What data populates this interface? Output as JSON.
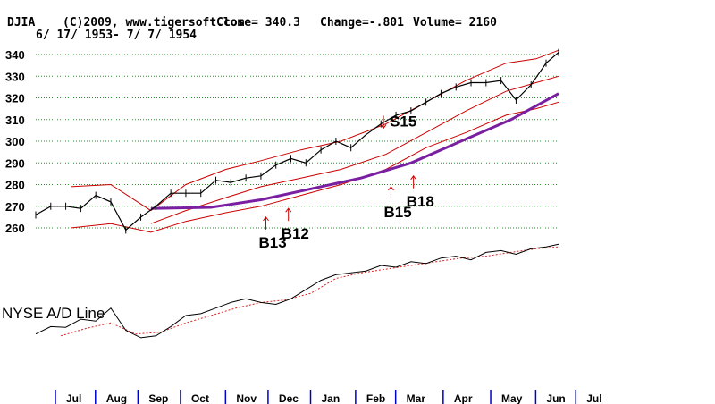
{
  "header": {
    "symbol": "DJIA",
    "copyright": "(C)2009, www.tigersoft.com",
    "close": "Close=  340.3",
    "change": "Change=-.801",
    "volume": "Volume= 2160",
    "date_range": "6/ 17/ 1953- 7/ 7/ 1954"
  },
  "colors": {
    "price": "#000000",
    "band": "#cc0000",
    "moving_average": "#7a1fa2",
    "grid": "#2e8b2e",
    "signal_arrow": "#cc0000",
    "ad_ma": "#e02020"
  },
  "chart_data": {
    "type": "line",
    "title": "DJIA",
    "ylim": [
      255,
      345
    ],
    "yticks": [
      "340",
      "330",
      "320",
      "310",
      "300",
      "290",
      "280",
      "270",
      "260"
    ],
    "months": [
      "Jul",
      "Aug",
      "Sep",
      "Oct",
      "Nov",
      "Dec",
      "Jan",
      "Feb",
      "Mar",
      "Apr",
      "May",
      "Jun",
      "Jul"
    ],
    "x_months": [
      0,
      0.8,
      1.65,
      2.5,
      3.4,
      4.25,
      5.1,
      6.0,
      6.8,
      7.75,
      8.7,
      9.6,
      10.4
    ],
    "price_x": [
      0,
      0.3,
      0.6,
      0.9,
      1.2,
      1.5,
      1.8,
      2.1,
      2.4,
      2.7,
      3.0,
      3.3,
      3.6,
      3.9,
      4.2,
      4.5,
      4.8,
      5.1,
      5.4,
      5.7,
      6.0,
      6.3,
      6.6,
      6.9,
      7.2,
      7.5,
      7.8,
      8.1,
      8.4,
      8.7,
      9.0,
      9.3,
      9.6,
      9.9,
      10.2,
      10.45
    ],
    "price_y": [
      266,
      270,
      270,
      269,
      275,
      272,
      259,
      265,
      270,
      276,
      276,
      276,
      282,
      281,
      283,
      284,
      289,
      292,
      290,
      296,
      300,
      297,
      303,
      308,
      312,
      314,
      318,
      322,
      325,
      327,
      327,
      328,
      319,
      326,
      336,
      341
    ],
    "ma_x": [
      2.3,
      3.5,
      4.5,
      5.5,
      6.5,
      7.5,
      8.5,
      9.5,
      10.45
    ],
    "ma_y": [
      269,
      269.5,
      273,
      278,
      283,
      290,
      300,
      310,
      322
    ],
    "upper_band_x": [
      0.7,
      1.5,
      2.3,
      3.0,
      3.8,
      4.5,
      5.3,
      6.1,
      7.0,
      7.8,
      8.6,
      9.4,
      10.0,
      10.45
    ],
    "upper_band_y": [
      279,
      280,
      268,
      280,
      287,
      291,
      296,
      300,
      308,
      318,
      328,
      336,
      338,
      342
    ],
    "lower_band_x": [
      0.7,
      1.5,
      2.3,
      3.0,
      3.8,
      4.5,
      5.3,
      6.1,
      7.0,
      7.8,
      8.6,
      9.4,
      10.0,
      10.45
    ],
    "lower_band_y": [
      260,
      262,
      258,
      263,
      267,
      270,
      275,
      280,
      287,
      297,
      304,
      312,
      315,
      318
    ],
    "middle_band_x": [
      2.3,
      3.0,
      3.8,
      4.5,
      5.3,
      6.1,
      7.0,
      7.8,
      8.6,
      9.4,
      10.0,
      10.45
    ],
    "middle_band_y": [
      262,
      268,
      274,
      279,
      283,
      287,
      294,
      304,
      314,
      323,
      327,
      330
    ],
    "signals": [
      {
        "label": "S15",
        "x": 6.95,
        "value": 306,
        "direction": "down"
      },
      {
        "label": "B12",
        "x": 5.05,
        "value": 269,
        "direction": "up"
      },
      {
        "label": "B13",
        "x": 4.6,
        "value": 265,
        "direction": "up"
      },
      {
        "label": "B15",
        "x": 7.1,
        "value": 279,
        "direction": "up"
      },
      {
        "label": "B18",
        "x": 7.55,
        "value": 284,
        "direction": "up"
      }
    ],
    "ad_line_label": "NYSE A/D Line",
    "ad_x": [
      0,
      0.3,
      0.6,
      0.9,
      1.2,
      1.5,
      1.8,
      2.1,
      2.4,
      2.7,
      3.0,
      3.3,
      3.6,
      3.9,
      4.2,
      4.5,
      4.8,
      5.1,
      5.4,
      5.7,
      6.0,
      6.3,
      6.6,
      6.9,
      7.2,
      7.5,
      7.8,
      8.1,
      8.4,
      8.7,
      9.0,
      9.3,
      9.6,
      9.9,
      10.2,
      10.45
    ],
    "ad_y": [
      20,
      40,
      38,
      60,
      55,
      90,
      30,
      10,
      15,
      40,
      70,
      75,
      90,
      105,
      115,
      105,
      100,
      115,
      140,
      165,
      180,
      185,
      190,
      205,
      200,
      215,
      210,
      225,
      230,
      220,
      240,
      245,
      235,
      250,
      255,
      262
    ],
    "ad_ma_x": [
      0.5,
      1.0,
      1.5,
      2.0,
      2.5,
      3.0,
      3.5,
      4.0,
      4.5,
      5.0,
      5.5,
      6.0,
      6.5,
      7.0,
      7.5,
      8.0,
      8.5,
      9.0,
      9.5,
      10.0,
      10.45
    ],
    "ad_ma_y": [
      15,
      35,
      50,
      20,
      25,
      50,
      70,
      90,
      105,
      112,
      130,
      170,
      185,
      195,
      205,
      215,
      225,
      230,
      240,
      250,
      255
    ],
    "ad_ylim": [
      0,
      270
    ]
  }
}
